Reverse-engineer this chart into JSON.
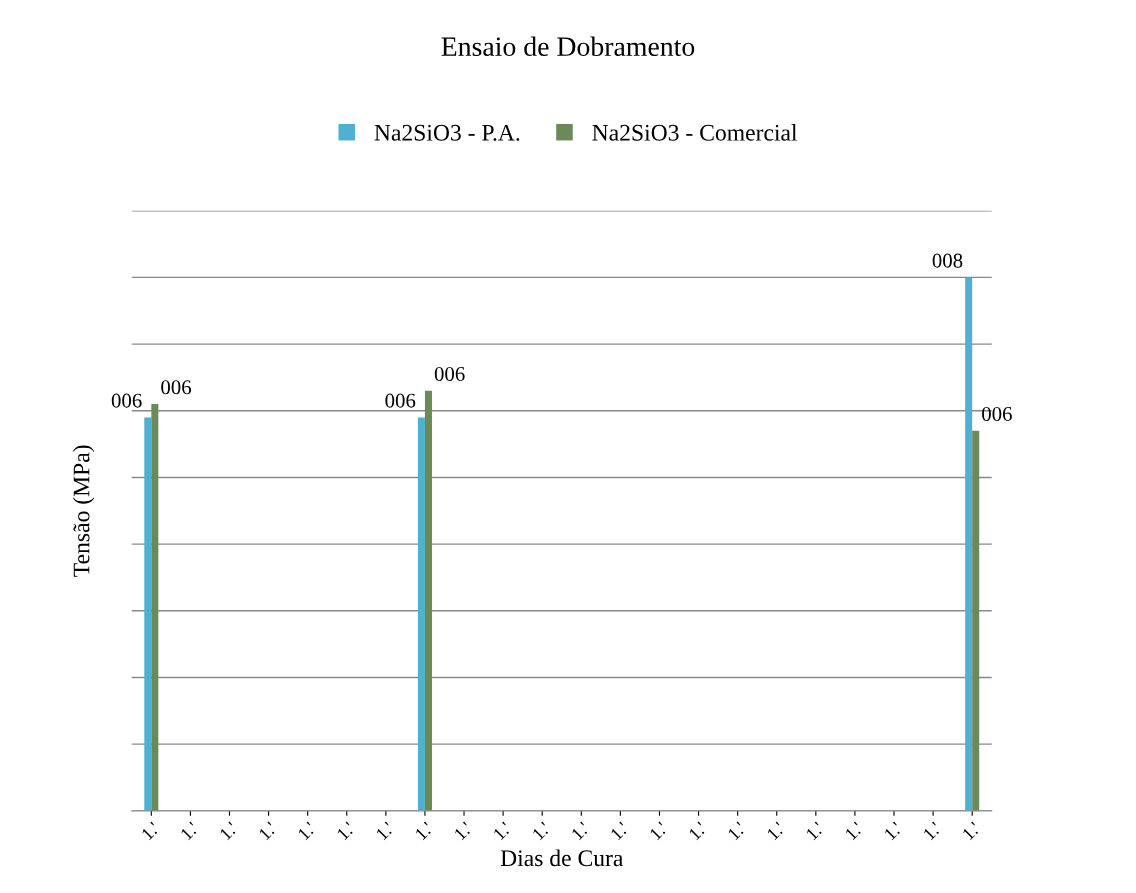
{
  "chart_data": {
    "type": "bar",
    "title": "Ensaio de Dobramento",
    "xlabel": "Dias de Cura",
    "ylabel": "Tensão (MPa)",
    "grid": "y",
    "legend": "top",
    "ylim": [
      0,
      9
    ],
    "yticks": [
      {
        "value": 0,
        "label": null
      },
      {
        "value": 1,
        "label": null
      },
      {
        "value": 2,
        "label": null
      },
      {
        "value": 3,
        "label": null
      },
      {
        "value": 4,
        "label": null
      },
      {
        "value": 5,
        "label": null
      },
      {
        "value": 6,
        "label": null
      },
      {
        "value": 7,
        "label": null
      },
      {
        "value": 8,
        "label": null
      },
      {
        "value": 9,
        "label": null
      }
    ],
    "categories": [
      "1.'",
      "1.'",
      "1.'",
      "1.'",
      "1.'",
      "1.'",
      "1.'",
      "1.'",
      "1.'",
      "1.'",
      "1.'",
      "1.'",
      "1.'",
      "1.'",
      "1.'",
      "1.'",
      "1.'",
      "1.'",
      "1.'",
      "1.'",
      "1.'",
      "1.'"
    ],
    "series": [
      {
        "name": "Na2SiO3 - P.A.",
        "color": "#4fb0d4",
        "values": [
          5.9,
          null,
          null,
          null,
          null,
          null,
          null,
          5.9,
          null,
          null,
          null,
          null,
          null,
          null,
          null,
          null,
          null,
          null,
          null,
          null,
          null,
          8.0
        ],
        "value_labels": [
          "006",
          null,
          null,
          null,
          null,
          null,
          null,
          "006",
          null,
          null,
          null,
          null,
          null,
          null,
          null,
          null,
          null,
          null,
          null,
          null,
          null,
          "008"
        ]
      },
      {
        "name": "Na2SiO3 - Comercial",
        "color": "#6b8a5a",
        "values": [
          6.1,
          null,
          null,
          null,
          null,
          null,
          null,
          6.3,
          null,
          null,
          null,
          null,
          null,
          null,
          null,
          null,
          null,
          null,
          null,
          null,
          null,
          5.7
        ],
        "value_labels": [
          "006",
          null,
          null,
          null,
          null,
          null,
          null,
          "006",
          null,
          null,
          null,
          null,
          null,
          null,
          null,
          null,
          null,
          null,
          null,
          null,
          null,
          "006"
        ]
      }
    ]
  }
}
